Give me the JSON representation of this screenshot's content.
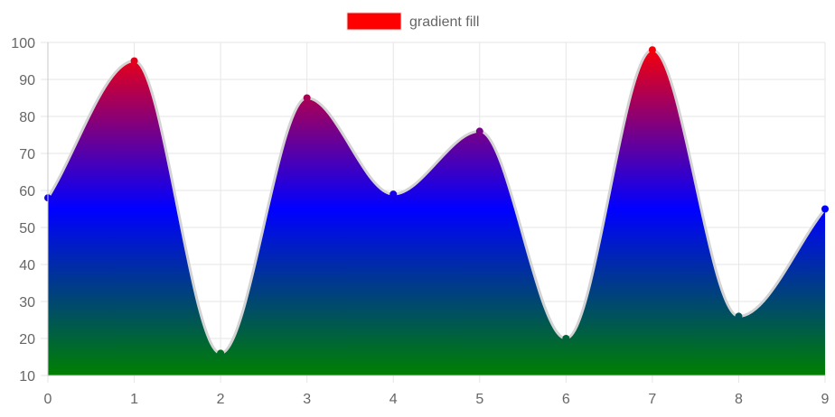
{
  "chart_data": {
    "type": "area",
    "legend": {
      "position": "top",
      "label": "gradient fill",
      "swatch_color": "#ff0000"
    },
    "x": [
      0,
      1,
      2,
      3,
      4,
      5,
      6,
      7,
      8,
      9
    ],
    "series": [
      {
        "name": "gradient fill",
        "values": [
          58,
          95,
          16,
          85,
          59,
          76,
          20,
          98,
          26,
          55
        ]
      }
    ],
    "xlim": [
      0,
      9
    ],
    "ylim": [
      10,
      100
    ],
    "x_ticks": [
      0,
      1,
      2,
      3,
      4,
      5,
      6,
      7,
      8,
      9
    ],
    "y_ticks": [
      10,
      20,
      30,
      40,
      50,
      60,
      70,
      80,
      90,
      100
    ],
    "grid": true,
    "colors": {
      "gradient_top": "#ff0000",
      "gradient_middle": "#0000ff",
      "gradient_bottom": "#008000",
      "line": "#d3d3d3",
      "grid": "#e6e6e6",
      "axis": "#c8c8c8",
      "text": "#666666"
    }
  }
}
